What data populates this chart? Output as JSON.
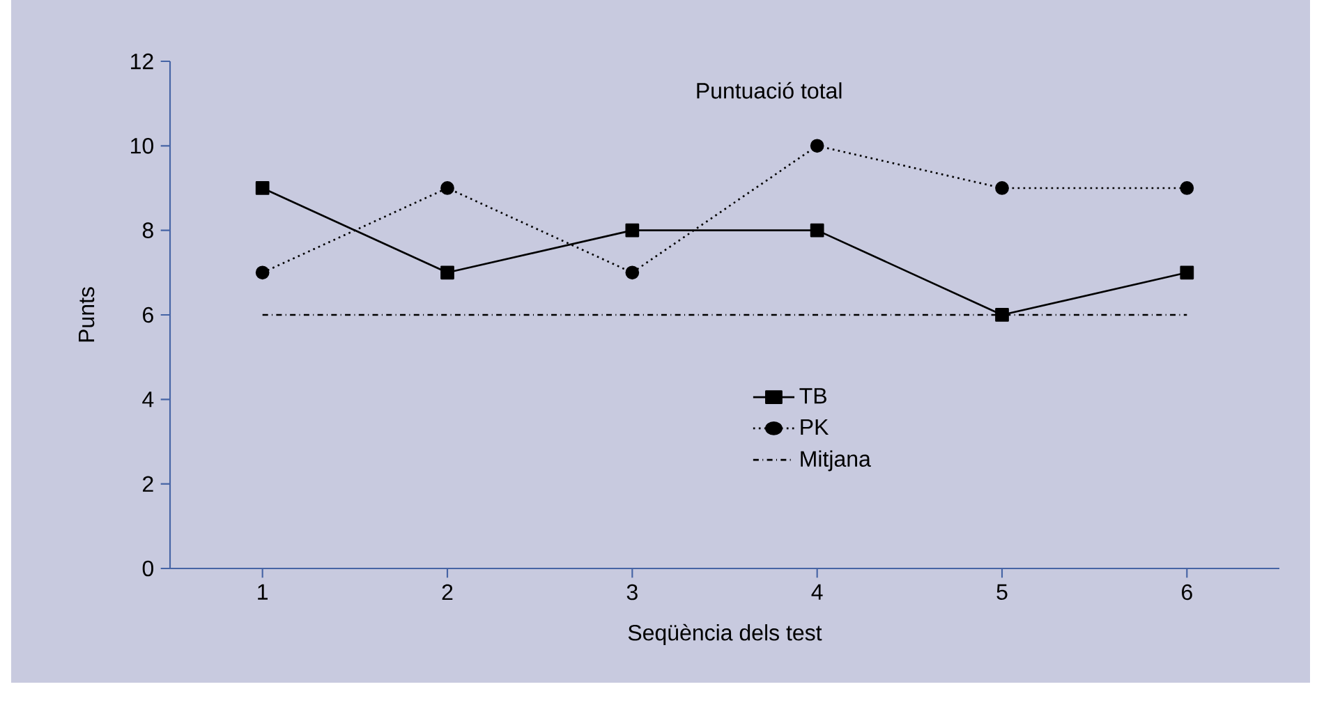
{
  "chart_data": {
    "type": "line",
    "title": "Puntuació total",
    "xlabel": "Seqüència dels test",
    "ylabel": "Punts",
    "x": [
      1,
      2,
      3,
      4,
      5,
      6
    ],
    "series": [
      {
        "name": "TB",
        "color": "#000000",
        "marker": "square",
        "line_style": "solid",
        "values": [
          9,
          7,
          8,
          8,
          6,
          7
        ]
      },
      {
        "name": "PK",
        "color": "#000000",
        "marker": "circle",
        "line_style": "dotted",
        "values": [
          7,
          9,
          7,
          10,
          9,
          9
        ]
      },
      {
        "name": "Mitjana",
        "color": "#000000",
        "marker": "none",
        "line_style": "dashdot",
        "values": [
          6,
          6,
          6,
          6,
          6,
          6
        ]
      }
    ],
    "xlim": [
      0.5,
      6.5
    ],
    "xticks": [
      1,
      2,
      3,
      4,
      5,
      6
    ],
    "ylim": [
      0,
      12
    ],
    "yticks": [
      0,
      2,
      4,
      6,
      8,
      10,
      12
    ],
    "grid": false,
    "legend": "center"
  }
}
